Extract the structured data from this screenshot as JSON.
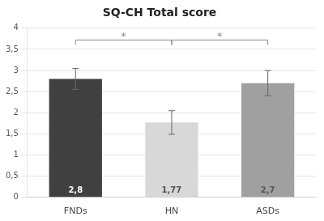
{
  "chart_data": {
    "type": "bar",
    "title": "SQ-CH Total score",
    "categories": [
      "FNDs",
      "HN",
      "ASDs"
    ],
    "values": [
      2.8,
      1.77,
      2.7
    ],
    "value_labels": [
      "2,8",
      "1,77",
      "2,7"
    ],
    "data_labels": true,
    "errors": [
      0.25,
      0.28,
      0.3
    ],
    "colors": [
      "#404040",
      "#d8d8d8",
      "#a0a0a0"
    ],
    "ylim": [
      0,
      4
    ],
    "yticks": [
      0,
      {
        "value": 0.5,
        "label": "0,5"
      },
      1,
      {
        "value": 1.5,
        "label": "1,5"
      },
      2,
      {
        "value": 2.5,
        "label": "2,5"
      },
      3,
      {
        "value": 3.5,
        "label": "3,5"
      },
      4
    ],
    "grid": true,
    "significance_brackets": [
      {
        "from": "FNDs",
        "to": "HN",
        "y": 3.72,
        "label": "*"
      },
      {
        "from": "HN",
        "to": "ASDs",
        "y": 3.72,
        "label": "*"
      }
    ]
  }
}
